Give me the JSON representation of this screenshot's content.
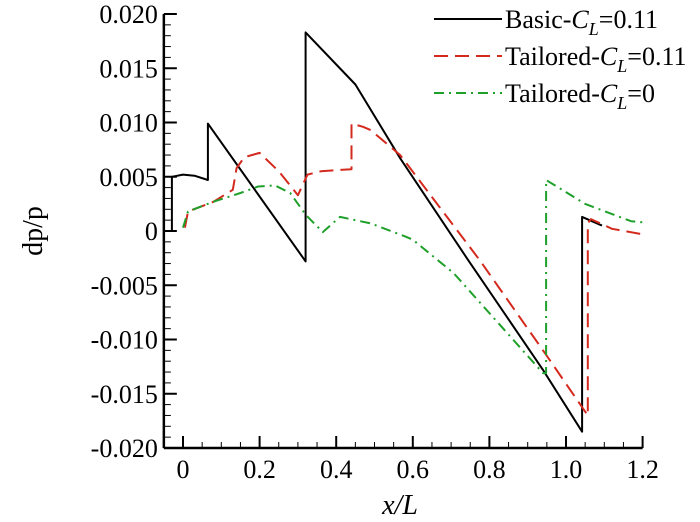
{
  "chart_data": {
    "type": "line",
    "title": "",
    "xlabel": "x/L",
    "ylabel": "dp/p",
    "xlim": [
      -0.05,
      1.2
    ],
    "ylim": [
      -0.02,
      0.02
    ],
    "xticks": [
      0,
      0.2,
      0.4,
      0.6,
      0.8,
      1.0,
      1.2
    ],
    "xtick_labels": [
      "0",
      "0.2",
      "0.4",
      "0.6",
      "0.8",
      "1.0",
      "1.2"
    ],
    "yticks": [
      -0.02,
      -0.015,
      -0.01,
      -0.005,
      0,
      0.005,
      0.01,
      0.015,
      0.02
    ],
    "ytick_labels": [
      "-0.020",
      "-0.015",
      "-0.010",
      "-0.005",
      "0",
      "0.005",
      "0.010",
      "0.015",
      "0.020"
    ],
    "grid": false,
    "legend_position": "top-right",
    "series": [
      {
        "name": "Basic-CL=0.11",
        "legend_prefix": "Basic-",
        "legend_sym": "C",
        "legend_sub": "L",
        "legend_suffix": "=0.11",
        "color": "#000000",
        "style": "solid",
        "x": [
          -0.029,
          -0.029,
          0.0,
          0.03,
          0.065,
          0.065,
          0.32,
          0.32,
          0.45,
          0.567,
          0.745,
          0.94,
          1.042,
          1.042,
          1.094
        ],
        "y": [
          0.0,
          0.005,
          0.0052,
          0.0051,
          0.0047,
          0.0099,
          -0.0028,
          0.0183,
          0.0135,
          0.0067,
          -0.0027,
          -0.0128,
          -0.0185,
          0.0013,
          0.0005
        ]
      },
      {
        "name": "Tailored-CL=0.11",
        "legend_prefix": "Tailored-",
        "legend_sym": "C",
        "legend_sub": "L",
        "legend_suffix": "=0.11",
        "color": "#d42a1e",
        "style": "dashed",
        "x": [
          0.005,
          0.013,
          0.08,
          0.13,
          0.14,
          0.16,
          0.2,
          0.25,
          0.3,
          0.325,
          0.36,
          0.4,
          0.44,
          0.44,
          0.47,
          0.49,
          0.567,
          0.775,
          0.95,
          1.057,
          1.057,
          1.065,
          1.12,
          1.2
        ],
        "y": [
          0.0003,
          0.0018,
          0.0027,
          0.0038,
          0.0058,
          0.0068,
          0.0072,
          0.0055,
          0.0033,
          0.0052,
          0.0055,
          0.0056,
          0.0057,
          0.0099,
          0.0096,
          0.0093,
          0.007,
          -0.0027,
          -0.0115,
          -0.017,
          0.0007,
          0.0011,
          0.0002,
          -0.0003
        ]
      },
      {
        "name": "Tailored-CL=0",
        "legend_prefix": "Tailored-",
        "legend_sym": "C",
        "legend_sub": "L",
        "legend_suffix": "=0",
        "color": "#1fa02a",
        "style": "dashdot",
        "x": [
          0.0,
          0.013,
          0.08,
          0.15,
          0.196,
          0.24,
          0.28,
          0.32,
          0.365,
          0.41,
          0.49,
          0.58,
          0.6,
          0.707,
          0.94,
          0.948,
          0.948,
          1.05,
          1.17,
          1.2
        ],
        "y": [
          0.0003,
          0.0018,
          0.0027,
          0.0035,
          0.0041,
          0.0042,
          0.0035,
          0.0015,
          -0.0001,
          0.0013,
          0.0007,
          -0.0005,
          -0.0008,
          -0.0039,
          -0.0131,
          -0.0131,
          0.0047,
          0.0025,
          0.0009,
          0.0008
        ]
      }
    ]
  }
}
